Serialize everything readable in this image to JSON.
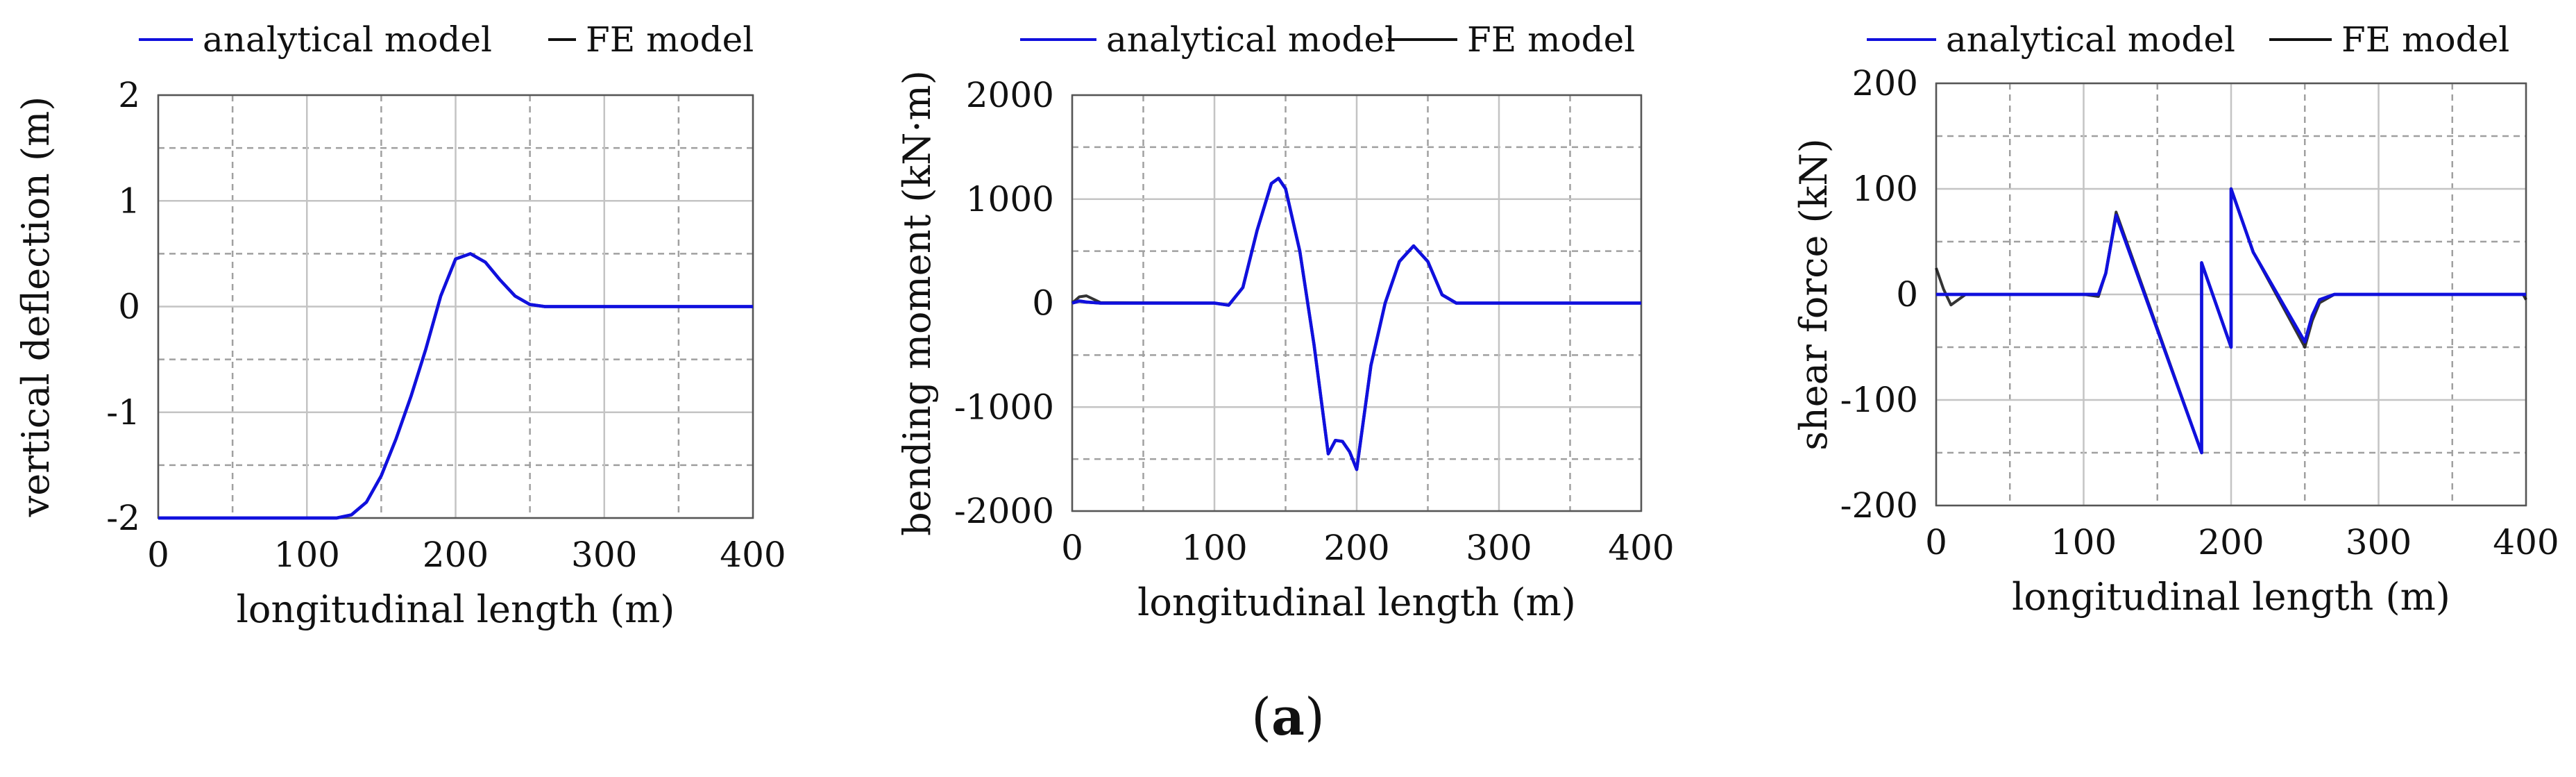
{
  "caption": {
    "open": "(",
    "label": "a",
    "close": ")"
  },
  "colors": {
    "analytical": "#1010dd",
    "fe": "#111111",
    "grid": "#a0a0a0",
    "axis": "#555555"
  },
  "chart_data": [
    {
      "type": "line",
      "xlabel": "longitudinal length (m)",
      "ylabel": "vertical deflection (m)",
      "xlim": [
        0,
        400
      ],
      "ylim": [
        -2,
        2
      ],
      "xticks": [
        0,
        100,
        200,
        300,
        400
      ],
      "yticks": [
        -2,
        -1,
        0,
        1,
        2
      ],
      "grid": true,
      "legend": "top",
      "series": [
        {
          "name": "analytical model",
          "x": [
            0,
            100,
            120,
            130,
            140,
            150,
            160,
            170,
            180,
            190,
            200,
            210,
            220,
            230,
            240,
            250,
            260,
            400
          ],
          "y": [
            -2,
            -2,
            -2,
            -1.97,
            -1.85,
            -1.6,
            -1.25,
            -0.85,
            -0.4,
            0.1,
            0.45,
            0.5,
            0.42,
            0.25,
            0.1,
            0.02,
            0,
            0
          ]
        },
        {
          "name": "FE model",
          "x": [
            0,
            100,
            120,
            130,
            140,
            150,
            160,
            170,
            180,
            190,
            200,
            210,
            220,
            230,
            240,
            250,
            260,
            400
          ],
          "y": [
            -2,
            -2,
            -2,
            -1.97,
            -1.85,
            -1.6,
            -1.25,
            -0.85,
            -0.4,
            0.1,
            0.45,
            0.5,
            0.42,
            0.25,
            0.1,
            0.02,
            0,
            0
          ]
        }
      ]
    },
    {
      "type": "line",
      "xlabel": "longitudinal length (m)",
      "ylabel": "bending moment (kN·m)",
      "xlim": [
        0,
        400
      ],
      "ylim": [
        -2000,
        2000
      ],
      "xticks": [
        0,
        100,
        200,
        300,
        400
      ],
      "yticks": [
        -2000,
        -1000,
        0,
        1000,
        2000
      ],
      "grid": true,
      "legend": "top",
      "series": [
        {
          "name": "analytical model",
          "x": [
            0,
            5,
            10,
            20,
            100,
            110,
            120,
            130,
            140,
            145,
            150,
            160,
            170,
            180,
            185,
            190,
            195,
            200,
            210,
            220,
            230,
            240,
            250,
            260,
            270,
            280,
            390,
            400
          ],
          "y": [
            0,
            20,
            10,
            0,
            0,
            -20,
            150,
            700,
            1150,
            1200,
            1100,
            500,
            -400,
            -1450,
            -1320,
            -1330,
            -1430,
            -1600,
            -600,
            0,
            400,
            550,
            400,
            80,
            0,
            0,
            0,
            0
          ]
        },
        {
          "name": "FE model",
          "x": [
            0,
            5,
            10,
            20,
            100,
            110,
            120,
            130,
            140,
            145,
            150,
            160,
            170,
            180,
            185,
            190,
            195,
            200,
            210,
            220,
            230,
            240,
            250,
            260,
            270,
            280,
            390,
            400
          ],
          "y": [
            0,
            60,
            70,
            5,
            0,
            -20,
            150,
            700,
            1150,
            1200,
            1100,
            500,
            -400,
            -1450,
            -1320,
            -1330,
            -1430,
            -1600,
            -600,
            0,
            400,
            550,
            400,
            80,
            0,
            0,
            0,
            0
          ]
        }
      ]
    },
    {
      "type": "line",
      "xlabel": "longitudinal length (m)",
      "ylabel": "shear force (kN)",
      "xlim": [
        0,
        400
      ],
      "ylim": [
        -200,
        200
      ],
      "xticks": [
        0,
        100,
        200,
        300,
        400
      ],
      "yticks": [
        -200,
        -100,
        0,
        100,
        200
      ],
      "grid": true,
      "legend": "top",
      "series": [
        {
          "name": "analytical model",
          "x": [
            0,
            20,
            100,
            110,
            115,
            122,
            180,
            180,
            200,
            200,
            215,
            250,
            255,
            260,
            270,
            280,
            400
          ],
          "y": [
            0,
            0,
            0,
            0,
            20,
            75,
            -150,
            30,
            -50,
            100,
            40,
            -45,
            -20,
            -5,
            0,
            0,
            0
          ]
        },
        {
          "name": "FE model",
          "x": [
            0,
            5,
            10,
            20,
            100,
            110,
            115,
            122,
            180,
            180,
            200,
            200,
            215,
            250,
            255,
            260,
            270,
            280,
            398,
            400
          ],
          "y": [
            25,
            5,
            -10,
            0,
            0,
            -2,
            20,
            78,
            -150,
            30,
            -50,
            100,
            40,
            -50,
            -25,
            -8,
            0,
            0,
            0,
            -5
          ]
        }
      ]
    }
  ]
}
